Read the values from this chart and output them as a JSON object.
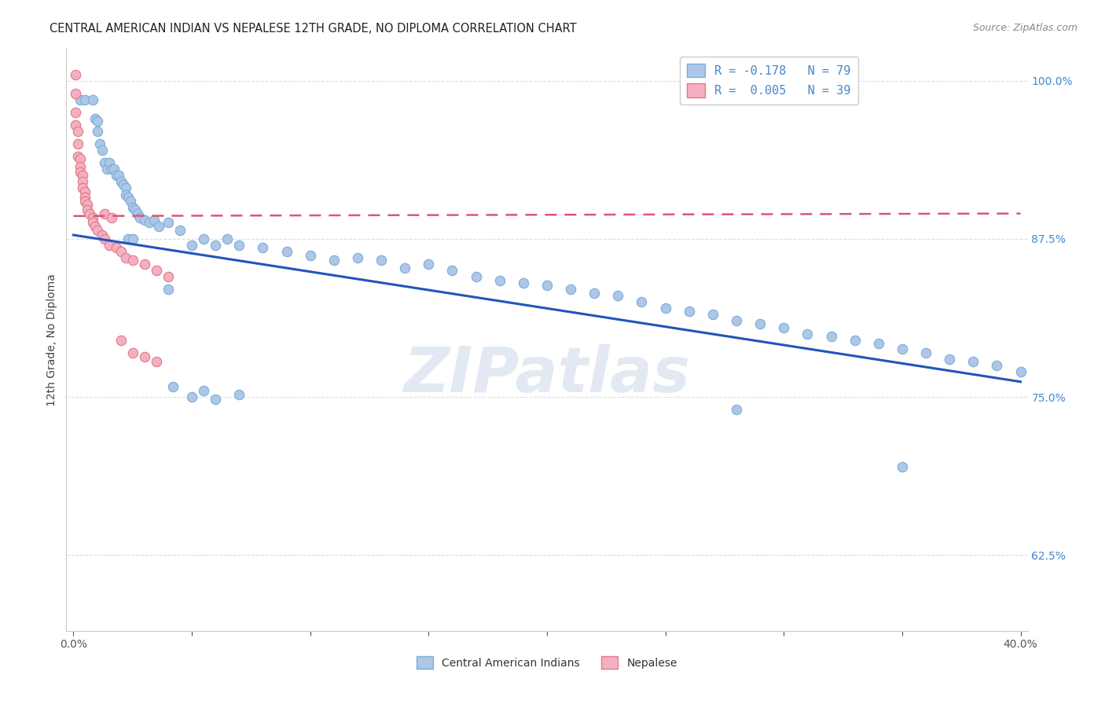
{
  "title": "CENTRAL AMERICAN INDIAN VS NEPALESE 12TH GRADE, NO DIPLOMA CORRELATION CHART",
  "source": "Source: ZipAtlas.com",
  "ylabel": "12th Grade, No Diploma",
  "xlim": [
    -0.003,
    0.403
  ],
  "ylim": [
    0.565,
    1.025
  ],
  "yticks": [
    0.625,
    0.75,
    0.875,
    1.0
  ],
  "ytick_labels": [
    "62.5%",
    "75.0%",
    "87.5%",
    "100.0%"
  ],
  "xticks": [
    0.0,
    0.05,
    0.1,
    0.15,
    0.2,
    0.25,
    0.3,
    0.35,
    0.4
  ],
  "xtick_labels": [
    "0.0%",
    "",
    "",
    "",
    "",
    "",
    "",
    "",
    "40.0%"
  ],
  "legend_labels": [
    "Central American Indians",
    "Nepalese"
  ],
  "r_blue": "-0.178",
  "n_blue": "79",
  "r_pink": "0.005",
  "n_pink": "39",
  "watermark": "ZIPatlas",
  "blue_scatter_x": [
    0.003,
    0.005,
    0.008,
    0.009,
    0.01,
    0.01,
    0.011,
    0.012,
    0.013,
    0.014,
    0.015,
    0.016,
    0.017,
    0.018,
    0.019,
    0.02,
    0.021,
    0.022,
    0.022,
    0.023,
    0.024,
    0.025,
    0.026,
    0.027,
    0.028,
    0.03,
    0.032,
    0.034,
    0.036,
    0.04,
    0.045,
    0.05,
    0.055,
    0.06,
    0.065,
    0.07,
    0.08,
    0.09,
    0.1,
    0.11,
    0.12,
    0.13,
    0.14,
    0.15,
    0.16,
    0.17,
    0.18,
    0.19,
    0.2,
    0.21,
    0.22,
    0.23,
    0.24,
    0.25,
    0.26,
    0.27,
    0.28,
    0.29,
    0.3,
    0.31,
    0.32,
    0.33,
    0.34,
    0.35,
    0.36,
    0.37,
    0.38,
    0.39,
    0.4,
    0.023,
    0.025,
    0.04,
    0.042,
    0.05,
    0.055,
    0.06,
    0.07,
    0.28,
    0.35
  ],
  "blue_scatter_y": [
    0.985,
    0.985,
    0.985,
    0.97,
    0.968,
    0.96,
    0.95,
    0.945,
    0.935,
    0.93,
    0.935,
    0.93,
    0.93,
    0.925,
    0.925,
    0.92,
    0.918,
    0.915,
    0.91,
    0.908,
    0.905,
    0.9,
    0.898,
    0.895,
    0.892,
    0.89,
    0.888,
    0.89,
    0.885,
    0.888,
    0.882,
    0.87,
    0.875,
    0.87,
    0.875,
    0.87,
    0.868,
    0.865,
    0.862,
    0.858,
    0.86,
    0.858,
    0.852,
    0.855,
    0.85,
    0.845,
    0.842,
    0.84,
    0.838,
    0.835,
    0.832,
    0.83,
    0.825,
    0.82,
    0.818,
    0.815,
    0.81,
    0.808,
    0.805,
    0.8,
    0.798,
    0.795,
    0.792,
    0.788,
    0.785,
    0.78,
    0.778,
    0.775,
    0.77,
    0.875,
    0.875,
    0.835,
    0.758,
    0.75,
    0.755,
    0.748,
    0.752,
    0.74,
    0.695
  ],
  "pink_scatter_x": [
    0.001,
    0.001,
    0.001,
    0.001,
    0.002,
    0.002,
    0.002,
    0.003,
    0.003,
    0.003,
    0.004,
    0.004,
    0.004,
    0.005,
    0.005,
    0.005,
    0.006,
    0.006,
    0.007,
    0.008,
    0.008,
    0.009,
    0.01,
    0.012,
    0.013,
    0.015,
    0.018,
    0.02,
    0.022,
    0.025,
    0.03,
    0.035,
    0.04,
    0.013,
    0.016,
    0.02,
    0.025,
    0.03,
    0.035
  ],
  "pink_scatter_y": [
    1.005,
    0.99,
    0.975,
    0.965,
    0.96,
    0.95,
    0.94,
    0.938,
    0.932,
    0.928,
    0.925,
    0.92,
    0.915,
    0.912,
    0.908,
    0.905,
    0.902,
    0.898,
    0.895,
    0.892,
    0.888,
    0.885,
    0.882,
    0.878,
    0.875,
    0.87,
    0.868,
    0.865,
    0.86,
    0.858,
    0.855,
    0.85,
    0.845,
    0.895,
    0.892,
    0.795,
    0.785,
    0.782,
    0.778
  ],
  "blue_line_x": [
    0.0,
    0.4
  ],
  "blue_line_y": [
    0.878,
    0.762
  ],
  "pink_line_x": [
    0.0,
    0.4
  ],
  "pink_line_y": [
    0.893,
    0.895
  ],
  "scatter_size": 80,
  "blue_fill": "#aec6e8",
  "blue_edge": "#7aafd4",
  "pink_fill": "#f4b0c0",
  "pink_edge": "#e07888",
  "blue_line_color": "#2255bb",
  "pink_line_color": "#dd5577",
  "title_fontsize": 10.5,
  "source_fontsize": 9,
  "axis_label_fontsize": 10,
  "tick_fontsize": 10,
  "legend_fontsize": 11,
  "watermark_color": "#ccd8e8",
  "background_color": "#ffffff",
  "grid_color": "#dddddd",
  "tick_color_right": "#4488cc",
  "tick_color_bottom": "#555555"
}
